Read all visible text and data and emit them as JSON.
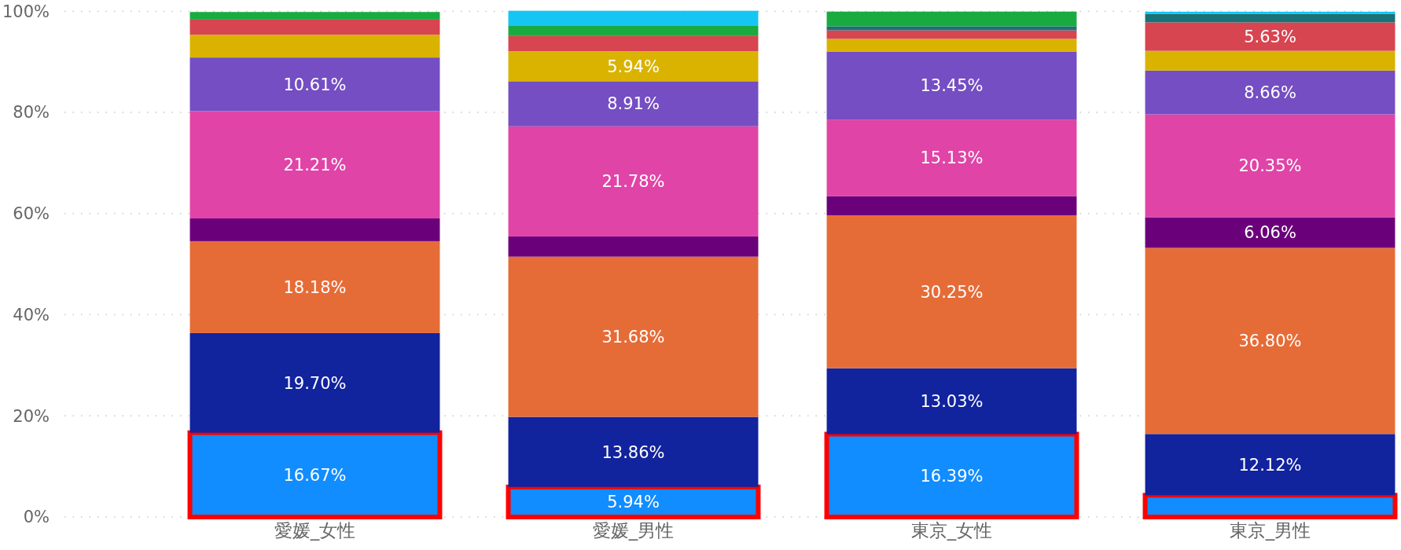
{
  "chart_data": {
    "type": "bar",
    "stacked": true,
    "categories": [
      "愛媛_女性",
      "愛媛_男性",
      "東京_女性",
      "東京_男性"
    ],
    "ylim": [
      0,
      100
    ],
    "yticks": [
      {
        "value": 0,
        "label": "0%"
      },
      {
        "value": 20,
        "label": "20%"
      },
      {
        "value": 40,
        "label": "40%"
      },
      {
        "value": 60,
        "label": "60%"
      },
      {
        "value": 80,
        "label": "80%"
      },
      {
        "value": 100,
        "label": "100%"
      }
    ],
    "grid": "y",
    "series": [
      {
        "color": "#118dff",
        "values": [
          16.67,
          5.94,
          16.39,
          4.3
        ],
        "value_labels": [
          "16.67%",
          "5.94%",
          "16.39%",
          null
        ]
      },
      {
        "color": "#12239e",
        "values": [
          19.7,
          13.86,
          13.03,
          12.12
        ],
        "value_labels": [
          "19.70%",
          "13.86%",
          "13.03%",
          "12.12%"
        ]
      },
      {
        "color": "#e66c37",
        "values": [
          18.18,
          31.68,
          30.25,
          36.8
        ],
        "value_labels": [
          "18.18%",
          "31.68%",
          "30.25%",
          "36.80%"
        ]
      },
      {
        "color": "#6b007b",
        "values": [
          4.5,
          4.0,
          3.8,
          6.06
        ],
        "value_labels": [
          null,
          null,
          null,
          "6.06%"
        ]
      },
      {
        "color": "#e044a7",
        "values": [
          21.21,
          21.78,
          15.13,
          20.35
        ],
        "value_labels": [
          "21.21%",
          "21.78%",
          "15.13%",
          "20.35%"
        ]
      },
      {
        "color": "#744ec2",
        "values": [
          10.61,
          8.91,
          13.45,
          8.66
        ],
        "value_labels": [
          "10.61%",
          "8.91%",
          "13.45%",
          "8.66%"
        ]
      },
      {
        "color": "#d9b300",
        "values": [
          4.5,
          5.94,
          2.5,
          3.9
        ],
        "value_labels": [
          null,
          "5.94%",
          null,
          null
        ]
      },
      {
        "color": "#d64550",
        "values": [
          3.0,
          3.0,
          1.7,
          5.63
        ],
        "value_labels": [
          null,
          null,
          null,
          "5.63%"
        ]
      },
      {
        "color": "#197278",
        "values": [
          null,
          null,
          0.8,
          1.7
        ],
        "value_labels": [
          null,
          null,
          null,
          null
        ]
      },
      {
        "color": "#1aab40",
        "values": [
          1.5,
          2.0,
          2.9,
          null
        ],
        "value_labels": [
          null,
          null,
          null,
          null
        ]
      },
      {
        "color": "#15c6f4",
        "values": [
          null,
          3.0,
          null,
          0.4
        ],
        "value_labels": [
          null,
          null,
          null,
          null
        ]
      }
    ]
  }
}
